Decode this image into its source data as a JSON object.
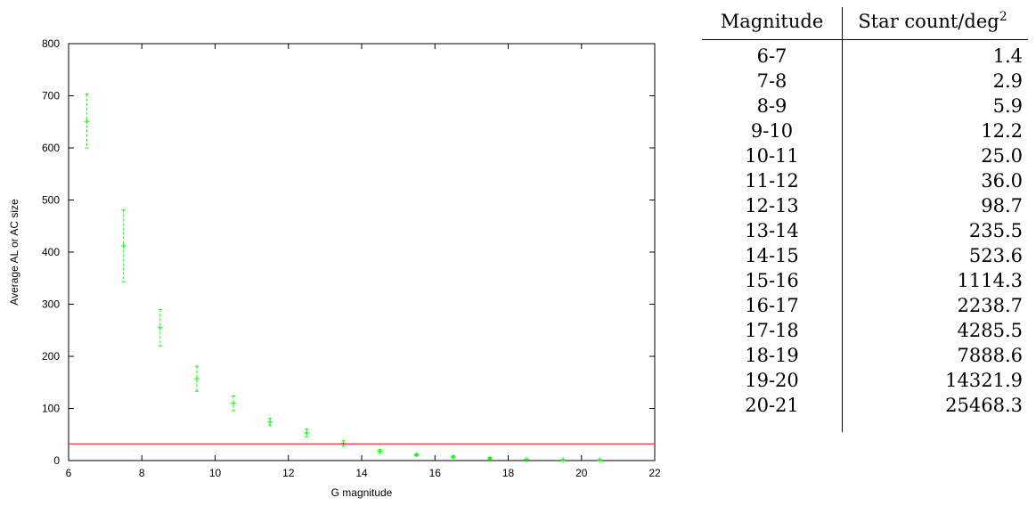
{
  "chart_data": {
    "type": "scatter",
    "xlabel": "G magnitude",
    "ylabel": "Average AL or AC size",
    "xlim": [
      6,
      22
    ],
    "ylim": [
      0,
      800
    ],
    "xticks": [
      "6",
      "8",
      "10",
      "12",
      "14",
      "16",
      "18",
      "20",
      "22"
    ],
    "yticks": [
      "0",
      "100",
      "200",
      "300",
      "400",
      "500",
      "600",
      "700",
      "800"
    ],
    "grid": false,
    "legend": "none",
    "point_color": "#00ff00",
    "points": [
      {
        "x": 6.5,
        "y": 651,
        "ylow": 600,
        "yhigh": 703
      },
      {
        "x": 7.5,
        "y": 412,
        "ylow": 343,
        "yhigh": 481
      },
      {
        "x": 8.5,
        "y": 255,
        "ylow": 220,
        "yhigh": 290
      },
      {
        "x": 9.5,
        "y": 157,
        "ylow": 133,
        "yhigh": 181
      },
      {
        "x": 10.5,
        "y": 110,
        "ylow": 96,
        "yhigh": 124
      },
      {
        "x": 11.5,
        "y": 74,
        "ylow": 67,
        "yhigh": 81
      },
      {
        "x": 12.5,
        "y": 53,
        "ylow": 45,
        "yhigh": 61
      },
      {
        "x": 13.5,
        "y": 33,
        "ylow": 28,
        "yhigh": 38
      },
      {
        "x": 14.5,
        "y": 18,
        "ylow": 15,
        "yhigh": 21
      },
      {
        "x": 15.5,
        "y": 11,
        "ylow": 9,
        "yhigh": 13
      },
      {
        "x": 16.5,
        "y": 7,
        "ylow": 5,
        "yhigh": 9
      },
      {
        "x": 17.5,
        "y": 4,
        "ylow": 2,
        "yhigh": 6
      },
      {
        "x": 18.5,
        "y": 2,
        "ylow": 1,
        "yhigh": 3
      },
      {
        "x": 19.5,
        "y": 1,
        "ylow": 0,
        "yhigh": 2
      },
      {
        "x": 20.5,
        "y": 1,
        "ylow": 0,
        "yhigh": 2
      }
    ],
    "reference_line": {
      "y": 32,
      "color": "#ff0000"
    }
  },
  "table": {
    "header_magnitude": "Magnitude",
    "header_count": "Star count/deg",
    "header_count_sup": "2",
    "rows": [
      {
        "mag": "6-7",
        "count": "1.4"
      },
      {
        "mag": "7-8",
        "count": "2.9"
      },
      {
        "mag": "8-9",
        "count": "5.9"
      },
      {
        "mag": "9-10",
        "count": "12.2"
      },
      {
        "mag": "10-11",
        "count": "25.0"
      },
      {
        "mag": "11-12",
        "count": "36.0"
      },
      {
        "mag": "12-13",
        "count": "98.7"
      },
      {
        "mag": "13-14",
        "count": "235.5"
      },
      {
        "mag": "14-15",
        "count": "523.6"
      },
      {
        "mag": "15-16",
        "count": "1114.3"
      },
      {
        "mag": "16-17",
        "count": "2238.7"
      },
      {
        "mag": "17-18",
        "count": "4285.5"
      },
      {
        "mag": "18-19",
        "count": "7888.6"
      },
      {
        "mag": "19-20",
        "count": "14321.9"
      },
      {
        "mag": "20-21",
        "count": "25468.3"
      }
    ]
  }
}
